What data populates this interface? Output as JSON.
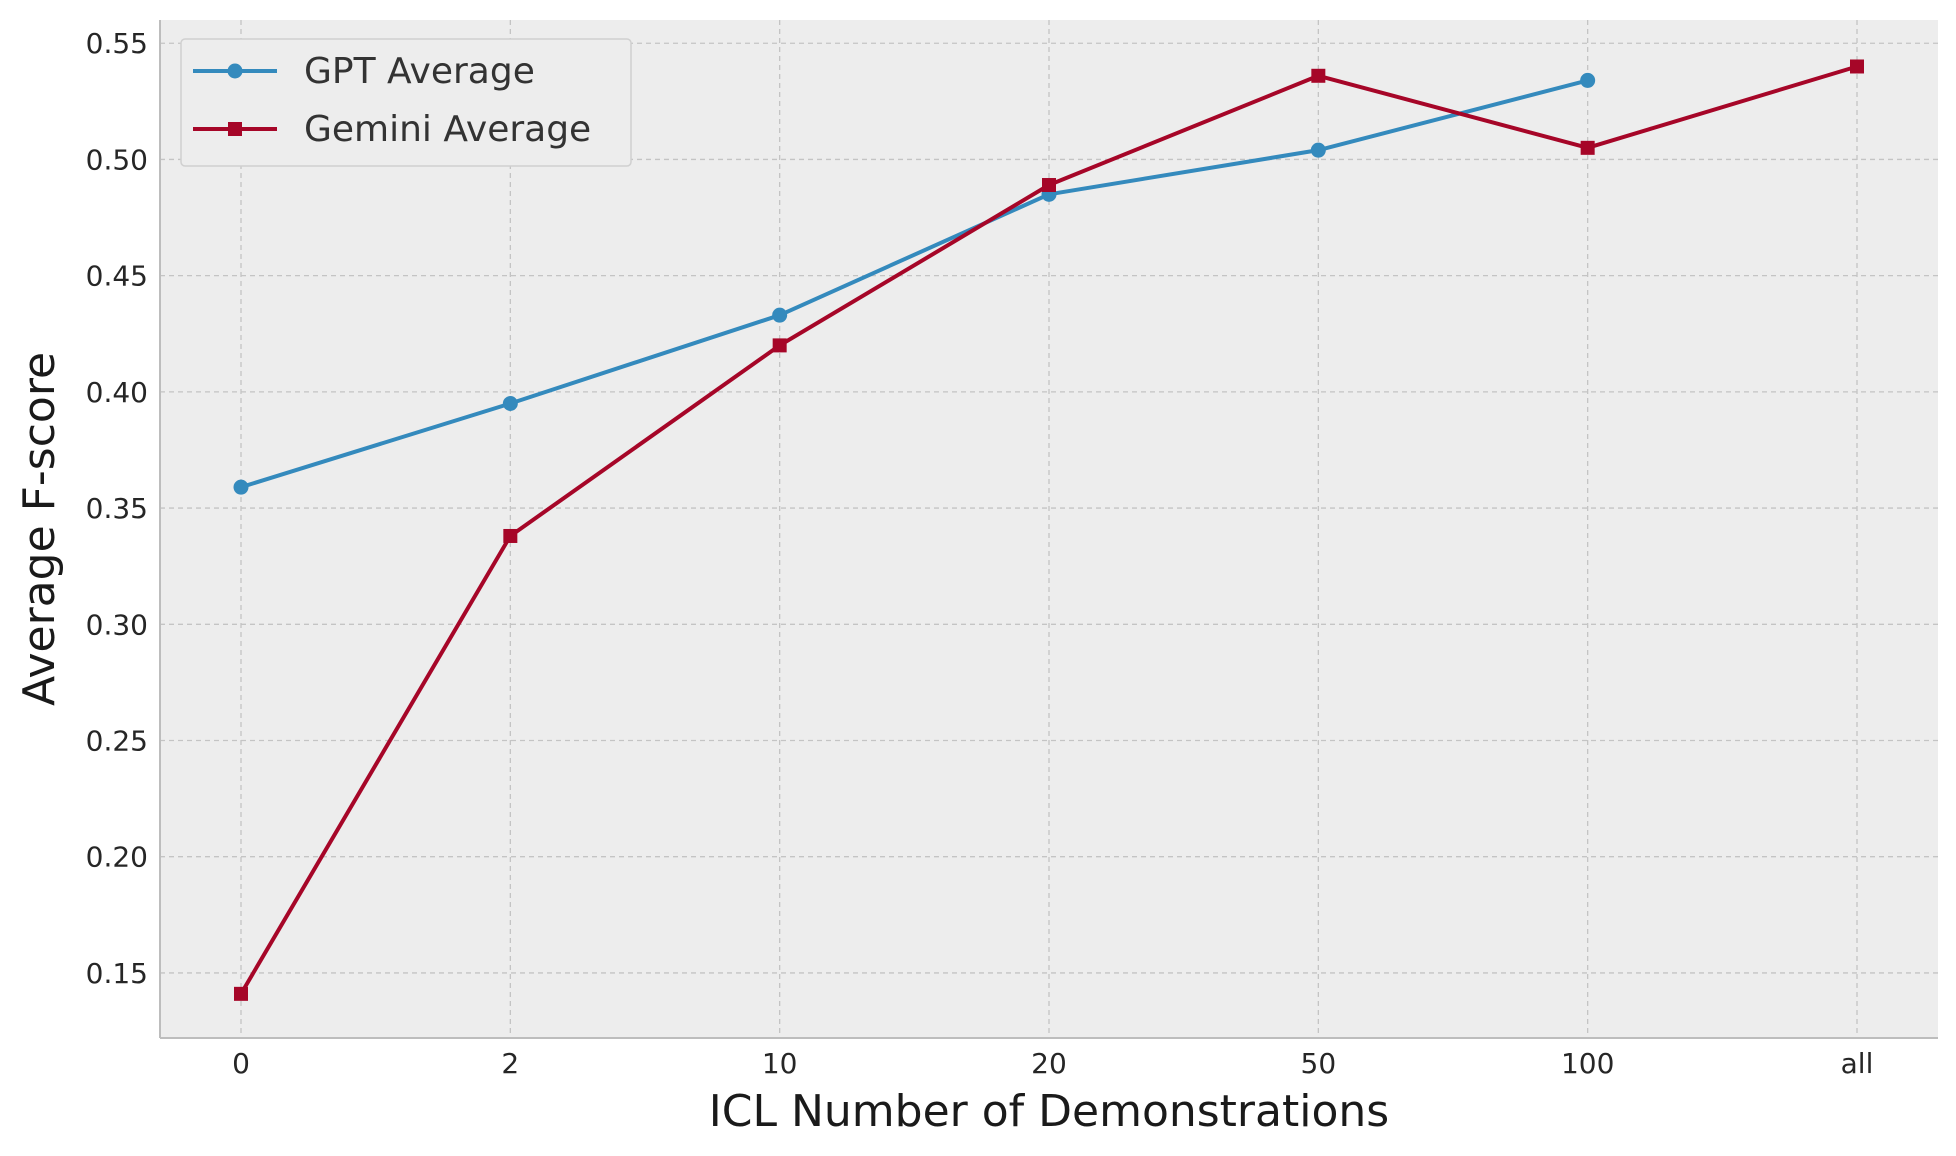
{
  "chart_data": {
    "type": "line",
    "title": "",
    "xlabel": "ICL Number of Demonstrations",
    "ylabel": "Average F-score",
    "categories": [
      "0",
      "2",
      "10",
      "20",
      "50",
      "100",
      "all"
    ],
    "yticks": [
      "0.15",
      "0.20",
      "0.25",
      "0.30",
      "0.35",
      "0.40",
      "0.45",
      "0.50",
      "0.55"
    ],
    "ylim": [
      0.122,
      0.56
    ],
    "grid": true,
    "legend_position": "top-left",
    "series": [
      {
        "name": "GPT Average",
        "color": "#348ABD",
        "marker": "circle",
        "values": [
          0.359,
          0.395,
          0.433,
          0.485,
          0.504,
          0.534,
          null
        ]
      },
      {
        "name": "Gemini Average",
        "color": "#A60628",
        "marker": "square",
        "values": [
          0.141,
          0.338,
          0.42,
          0.489,
          0.536,
          0.505,
          0.54
        ]
      }
    ],
    "colors": {
      "plot_background": "#EDEDED",
      "grid": "#C4C4C4",
      "spine": "#BDBDBD"
    }
  }
}
